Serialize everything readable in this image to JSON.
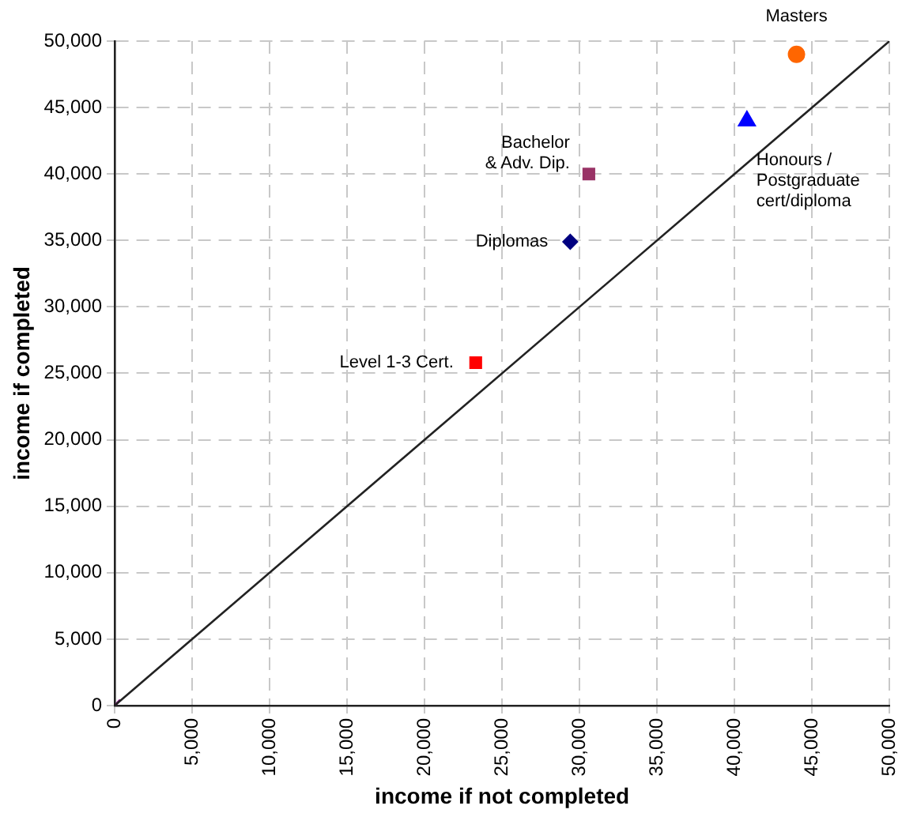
{
  "chart_data": {
    "type": "scatter",
    "xlabel": "income if not completed",
    "ylabel": "income if completed",
    "xlim": [
      0,
      50000
    ],
    "ylim": [
      0,
      50000
    ],
    "xticks": [
      {
        "value": 0,
        "label": "0"
      },
      {
        "value": 5000,
        "label": "5,000"
      },
      {
        "value": 10000,
        "label": "10,000"
      },
      {
        "value": 15000,
        "label": "15,000"
      },
      {
        "value": 20000,
        "label": "20,000"
      },
      {
        "value": 25000,
        "label": "25,000"
      },
      {
        "value": 30000,
        "label": "30,000"
      },
      {
        "value": 35000,
        "label": "35,000"
      },
      {
        "value": 40000,
        "label": "40,000"
      },
      {
        "value": 45000,
        "label": "45,000"
      },
      {
        "value": 50000,
        "label": "50,000"
      }
    ],
    "yticks": [
      {
        "value": 0,
        "label": "0"
      },
      {
        "value": 5000,
        "label": "5,000"
      },
      {
        "value": 10000,
        "label": "10,000"
      },
      {
        "value": 15000,
        "label": "15,000"
      },
      {
        "value": 20000,
        "label": "20,000"
      },
      {
        "value": 25000,
        "label": "25,000"
      },
      {
        "value": 30000,
        "label": "30,000"
      },
      {
        "value": 35000,
        "label": "35,000"
      },
      {
        "value": 40000,
        "label": "40,000"
      },
      {
        "value": 45000,
        "label": "45,000"
      },
      {
        "value": 50000,
        "label": "50,000"
      }
    ],
    "grid": true,
    "legend": false,
    "series": [
      {
        "type": "line",
        "color": "#222222",
        "x": [
          0,
          50000
        ],
        "values": [
          0,
          50000
        ],
        "marker": "none",
        "line_style": "solid"
      },
      {
        "color": "#800080",
        "x": [
          0
        ],
        "values": [
          0
        ],
        "marker": "cross"
      },
      {
        "name": "Level 1-3 Cert.",
        "color": "#ff0000",
        "x": [
          23300
        ],
        "values": [
          25800
        ],
        "marker": "square"
      },
      {
        "name": "Diplomas",
        "color": "#000080",
        "x": [
          29400
        ],
        "values": [
          34900
        ],
        "marker": "diamond"
      },
      {
        "name": "Bachelor\n& Adv. Dip.",
        "color": "#993366",
        "x": [
          30600
        ],
        "values": [
          40000
        ],
        "marker": "square"
      },
      {
        "name": "Honours /\nPostgraduate\ncert/diploma",
        "color": "#0000ff",
        "x": [
          40800
        ],
        "values": [
          44000
        ],
        "marker": "triangle"
      },
      {
        "name": "Masters",
        "color": "#ff6600",
        "x": [
          44000
        ],
        "values": [
          49000
        ],
        "marker": "circle"
      }
    ]
  }
}
